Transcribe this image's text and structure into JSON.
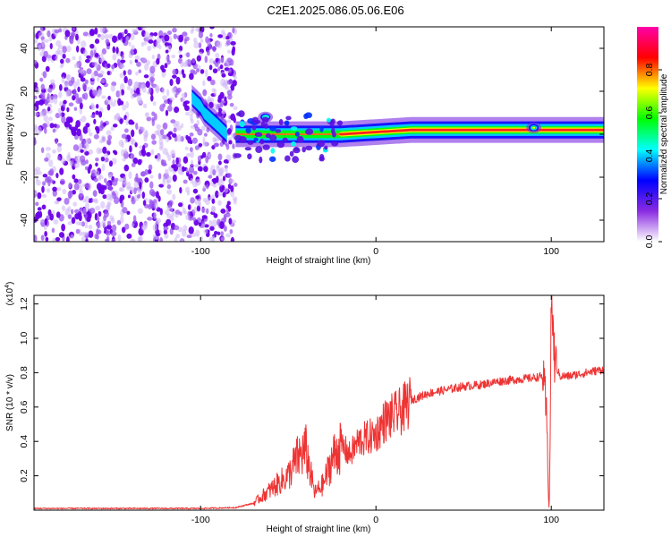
{
  "title": "C2E1.2025.086.05.06.E06",
  "chart_data": [
    {
      "type": "heatmap",
      "xlabel": "Height of straight line (km)",
      "ylabel": "Frequency (Hz)",
      "xlim": [
        -195,
        130
      ],
      "ylim": [
        -50,
        50
      ],
      "x_ticks": [
        -100,
        0,
        100
      ],
      "y_ticks": [
        -40,
        -20,
        0,
        20,
        40
      ],
      "colorbar": {
        "label": "Normalized spectral amplitude",
        "range": [
          0,
          1
        ],
        "ticks": [
          "0.0",
          "0.2",
          "0.4",
          "0.6",
          "0.8"
        ],
        "colormap": [
          "#ffffff",
          "#8a2be2",
          "#0000ff",
          "#00ffff",
          "#00ff00",
          "#ffff00",
          "#ff0000",
          "#ff00aa"
        ]
      },
      "features": [
        {
          "kind": "noise",
          "x_range": [
            -195,
            -80
          ],
          "freq_range": [
            -50,
            50
          ]
        },
        {
          "kind": "ridge",
          "x": [
            -105,
            -100,
            -98,
            -90,
            -85
          ],
          "freq": [
            17,
            13,
            10,
            4,
            0
          ]
        },
        {
          "kind": "ridge",
          "x": [
            -80,
            -60,
            -40,
            -20,
            0,
            20,
            60,
            100,
            130
          ],
          "freq": [
            0,
            0,
            0,
            0,
            1,
            2,
            2,
            2,
            2
          ]
        },
        {
          "kind": "blob",
          "x": 90,
          "freq": 3
        },
        {
          "kind": "blob",
          "x": -63,
          "freq": 8
        }
      ]
    },
    {
      "type": "line",
      "xlabel": "Height of straight line (km)",
      "ylabel": "SNR (10 * v/v)",
      "y_multiplier": "(x10",
      "y_multiplier_exp": "4",
      "y_multiplier_close": ")",
      "xlim": [
        -195,
        130
      ],
      "ylim": [
        0,
        1.25
      ],
      "x_ticks": [
        -100,
        0,
        100
      ],
      "y_ticks": [
        "0.2",
        "0.4",
        "0.6",
        "0.8",
        "1.0",
        "1.2"
      ],
      "color": "#ee3333",
      "x": [
        -195,
        -150,
        -100,
        -80,
        -70,
        -60,
        -50,
        -45,
        -40,
        -35,
        -30,
        -25,
        -20,
        -15,
        -10,
        -5,
        0,
        5,
        10,
        15,
        20,
        25,
        30,
        40,
        50,
        60,
        70,
        80,
        90,
        95,
        97,
        98,
        99,
        100,
        102,
        105,
        110,
        120,
        130
      ],
      "y": [
        0.01,
        0.01,
        0.01,
        0.015,
        0.04,
        0.12,
        0.2,
        0.3,
        0.35,
        0.1,
        0.15,
        0.3,
        0.38,
        0.32,
        0.4,
        0.42,
        0.44,
        0.52,
        0.55,
        0.58,
        0.64,
        0.66,
        0.68,
        0.7,
        0.72,
        0.73,
        0.75,
        0.76,
        0.77,
        0.78,
        0.6,
        0.3,
        0.02,
        1.25,
        0.85,
        0.78,
        0.78,
        0.8,
        0.82
      ]
    }
  ]
}
